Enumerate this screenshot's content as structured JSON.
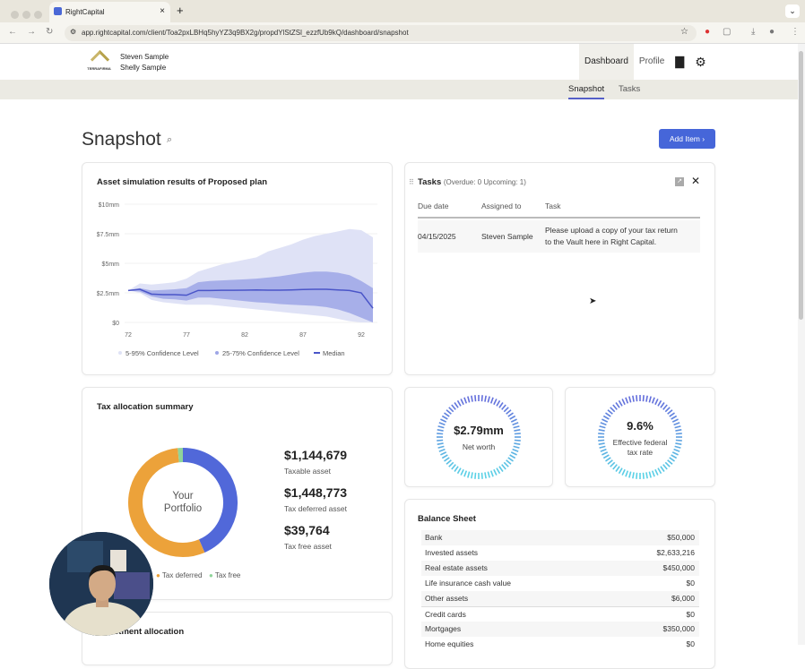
{
  "browser": {
    "tab_title": "RightCapital",
    "url": "app.rightcapital.com/client/Toa2pxLBHq5hyYZ3q9BX2g/propdYlStZSl_ezzfUb9kQ/dashboard/snapshot"
  },
  "header": {
    "client1": "Steven Sample",
    "client2": "Shelly Sample",
    "logo_text": "TerraFirma",
    "nav": [
      "Dashboard",
      "Profile"
    ],
    "subnav": [
      "Snapshot",
      "Tasks"
    ]
  },
  "page": {
    "title": "Snapshot",
    "add_button": "Add Item"
  },
  "asset_chart": {
    "title": "Asset simulation results of Proposed plan"
  },
  "chart_data": [
    {
      "type": "area",
      "title": "Asset simulation results of Proposed plan",
      "x": [
        72,
        73,
        74,
        75,
        76,
        77,
        78,
        79,
        80,
        81,
        82,
        83,
        84,
        85,
        86,
        87,
        88,
        89,
        90,
        91,
        92,
        93
      ],
      "x_ticks": [
        "72",
        "77",
        "82",
        "87",
        "92"
      ],
      "y_ticks": [
        "$0",
        "$2.5mm",
        "$5mm",
        "$7.5mm",
        "$10mm"
      ],
      "ylim": [
        0,
        10
      ],
      "yunit": "$mm",
      "series": [
        {
          "name": "5-95% Confidence Level",
          "color": "#dfe2f6",
          "upper": [
            2.7,
            3.3,
            3.2,
            3.3,
            3.4,
            3.7,
            4.3,
            4.6,
            4.9,
            5.1,
            5.3,
            5.5,
            6.0,
            6.3,
            6.6,
            7.0,
            7.3,
            7.5,
            7.7,
            7.9,
            7.8,
            7.2
          ],
          "lower": [
            2.7,
            2.5,
            1.9,
            1.7,
            1.6,
            1.5,
            1.5,
            1.5,
            1.4,
            1.3,
            1.2,
            1.1,
            1.0,
            0.9,
            0.8,
            0.7,
            0.6,
            0.5,
            0.3,
            0.1,
            0,
            0
          ]
        },
        {
          "name": "25-75% Confidence Level",
          "color": "#9ea6e6",
          "upper": [
            2.7,
            2.9,
            2.7,
            2.75,
            2.8,
            2.9,
            3.4,
            3.5,
            3.55,
            3.6,
            3.65,
            3.7,
            3.8,
            3.9,
            4.05,
            4.2,
            4.3,
            4.3,
            4.2,
            4.0,
            3.5,
            2.9
          ],
          "lower": [
            2.7,
            2.6,
            2.2,
            2.0,
            1.95,
            1.85,
            2.1,
            2.1,
            2.0,
            1.9,
            1.8,
            1.7,
            1.65,
            1.55,
            1.5,
            1.45,
            1.4,
            1.3,
            1.1,
            0.8,
            0.4,
            0
          ]
        },
        {
          "name": "Median",
          "color": "#4a55c8",
          "values": [
            2.7,
            2.8,
            2.4,
            2.35,
            2.35,
            2.3,
            2.7,
            2.7,
            2.72,
            2.72,
            2.73,
            2.75,
            2.73,
            2.73,
            2.75,
            2.78,
            2.8,
            2.8,
            2.75,
            2.7,
            2.5,
            1.2
          ]
        }
      ]
    },
    {
      "type": "pie",
      "title": "Tax allocation summary",
      "center_label": "Your Portfolio",
      "slices": [
        {
          "name": "Taxable",
          "value": 1144679,
          "color": "#5168d9"
        },
        {
          "name": "Tax deferred",
          "value": 1448773,
          "color": "#eca23a"
        },
        {
          "name": "Tax free",
          "value": 39764,
          "color": "#8fd49a"
        }
      ]
    }
  ],
  "tasks": {
    "title": "Tasks",
    "summary": "(Overdue: 0  Upcoming: 1)",
    "columns": [
      "Due date",
      "Assigned to",
      "Task"
    ],
    "rows": [
      {
        "due": "04/15/2025",
        "assigned": "Steven Sample",
        "task1": "Please upload a copy of your tax return",
        "task2": "to the Vault here in Right Capital."
      }
    ]
  },
  "tax": {
    "title": "Tax allocation summary",
    "center1": "Your",
    "center2": "Portfolio",
    "items": [
      {
        "amount": "$1,144,679",
        "label": "Taxable asset"
      },
      {
        "amount": "$1,448,773",
        "label": "Tax deferred asset"
      },
      {
        "amount": "$39,764",
        "label": "Tax free asset"
      }
    ],
    "legend": [
      "Tax deferred",
      "Tax free"
    ]
  },
  "networth": {
    "value": "$2.79mm",
    "label": "Net worth"
  },
  "taxrate": {
    "value": "9.6%",
    "label1": "Effective federal",
    "label2": "tax rate"
  },
  "balance": {
    "title": "Balance Sheet",
    "rows": [
      {
        "label": "Bank",
        "value": "$50,000"
      },
      {
        "label": "Invested assets",
        "value": "$2,633,216"
      },
      {
        "label": "Real estate assets",
        "value": "$450,000"
      },
      {
        "label": "Life insurance cash value",
        "value": "$0"
      },
      {
        "label": "Other assets",
        "value": "$6,000"
      },
      {
        "label": "Credit cards",
        "value": "$0"
      },
      {
        "label": "Mortgages",
        "value": "$350,000"
      },
      {
        "label": "Home equities",
        "value": "$0"
      }
    ]
  },
  "investment": {
    "title": "Investment allocation"
  }
}
